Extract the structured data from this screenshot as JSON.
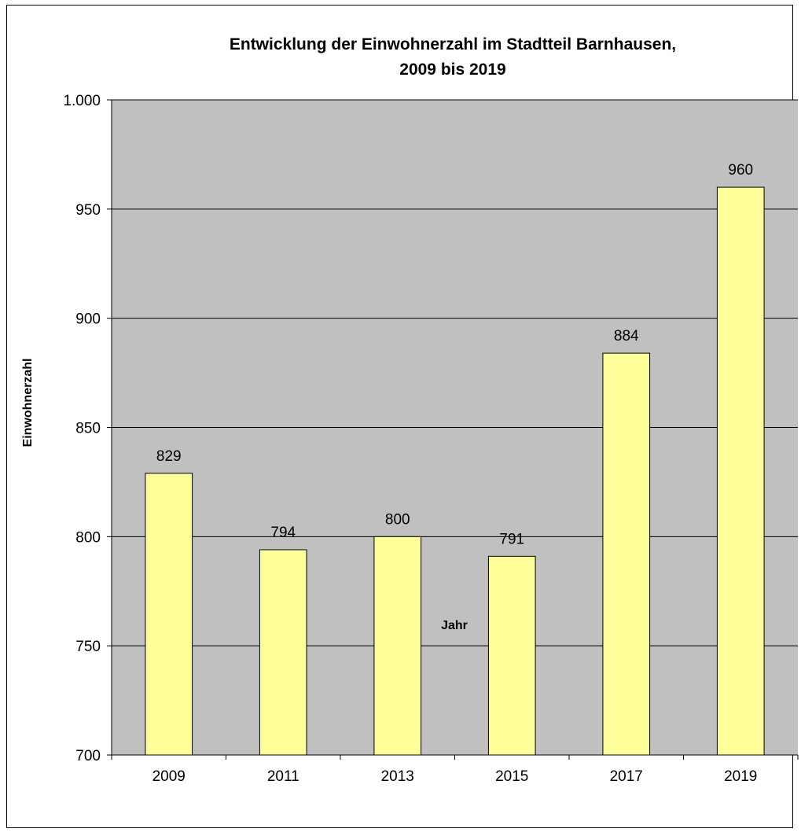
{
  "chart_data": {
    "type": "bar",
    "title_lines": [
      "Entwicklung der Einwohnerzahl im Stadtteil Barnhausen,",
      "2009 bis 2019"
    ],
    "xlabel": "Jahr",
    "ylabel": "Einwohnerzahl",
    "categories": [
      "2009",
      "2011",
      "2013",
      "2015",
      "2017",
      "2019"
    ],
    "values": [
      829,
      794,
      800,
      791,
      884,
      960
    ],
    "data_labels": [
      "829",
      "794",
      "800",
      "791",
      "884",
      "960"
    ],
    "ylim": [
      700,
      1000
    ],
    "yticks": [
      700,
      750,
      800,
      850,
      900,
      950,
      1000
    ],
    "ytick_labels": [
      "700",
      "750",
      "800",
      "850",
      "900",
      "950",
      "1.000"
    ],
    "grid": true,
    "legend": "none",
    "colors": {
      "plot_background": "#c0c0c0",
      "bar_fill": "#ffff99",
      "bar_stroke": "#000000",
      "gridline": "#000000"
    }
  }
}
